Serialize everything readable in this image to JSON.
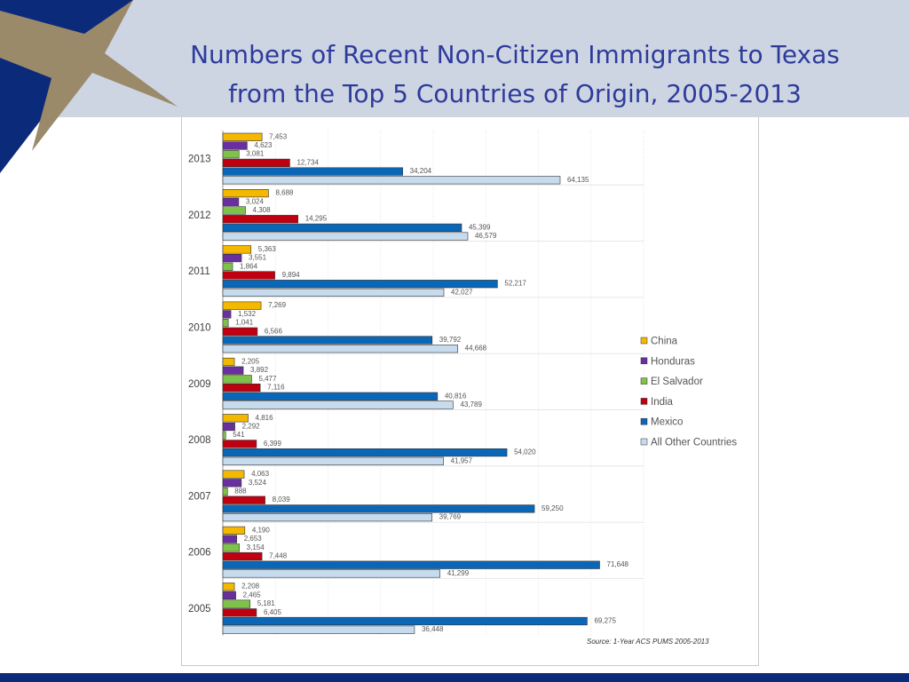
{
  "slide": {
    "title_line1": "Numbers of Recent Non-Citizen Immigrants to Texas",
    "title_line2": "from the Top 5 Countries of Origin, 2005-2013"
  },
  "colors": {
    "header_band": "#cdd5e3",
    "title": "#2e3b9b",
    "corner_navy": "#0c2a7a",
    "corner_star": "#9a8a6a",
    "bottom_bar": "#0c2a7a"
  },
  "chart_data": {
    "type": "bar",
    "orientation": "horizontal",
    "title": "Numbers of Recent Non-Citizen Immigrants to Texas from the Top 5 Countries of Origin, 2005-2013",
    "categories": [
      "2013",
      "2012",
      "2011",
      "2010",
      "2009",
      "2008",
      "2007",
      "2006",
      "2005"
    ],
    "xlim": [
      0,
      80000
    ],
    "grid": true,
    "legend_position": "right",
    "source": "Source: 1-Year ACS PUMS 2005-2013",
    "series": [
      {
        "name": "China",
        "color": "#f5b800",
        "values": [
          7453,
          8688,
          5363,
          7269,
          2205,
          4816,
          4063,
          4190,
          2208
        ],
        "labels": [
          "7,453",
          "8,688",
          "5,363",
          "7,269",
          "2,205",
          "4,816",
          "4,063",
          "4,190",
          "2,208"
        ]
      },
      {
        "name": "Honduras",
        "color": "#6a2f9e",
        "values": [
          4623,
          3024,
          3551,
          1532,
          3892,
          2292,
          3524,
          2653,
          2465
        ],
        "labels": [
          "4,623",
          "3,024",
          "3,551",
          "1,532",
          "3,892",
          "2,292",
          "3,524",
          "2,653",
          "2,465"
        ]
      },
      {
        "name": "El Salvador",
        "color": "#7fc24a",
        "values": [
          3081,
          4308,
          1864,
          1041,
          5477,
          541,
          888,
          3154,
          5181
        ],
        "labels": [
          "3,081",
          "4,308",
          "1,864",
          "1,041",
          "5,477",
          "541",
          "888",
          "3,154",
          "5,181"
        ]
      },
      {
        "name": "India",
        "color": "#c00010",
        "values": [
          12734,
          14295,
          9894,
          6566,
          7116,
          6399,
          8039,
          7448,
          6405
        ],
        "labels": [
          "12,734",
          "14,295",
          "9,894",
          "6,566",
          "7,116",
          "6,399",
          "8,039",
          "7,448",
          "6,405"
        ]
      },
      {
        "name": "Mexico",
        "color": "#0a67b8",
        "values": [
          34204,
          45399,
          52217,
          39792,
          40816,
          54020,
          59250,
          71648,
          69275
        ],
        "labels": [
          "34,204",
          "45,399",
          "52,217",
          "39,792",
          "40,816",
          "54,020",
          "59,250",
          "71,648",
          "69,275"
        ]
      },
      {
        "name": "All Other Countries",
        "color": "#c7dbee",
        "values": [
          64135,
          46579,
          42027,
          44668,
          43789,
          41957,
          39769,
          41299,
          36448
        ],
        "labels": [
          "64,135",
          "46,579",
          "42,027",
          "44,668",
          "43,789",
          "41,957",
          "39,769",
          "41,299",
          "36,448"
        ]
      }
    ]
  }
}
